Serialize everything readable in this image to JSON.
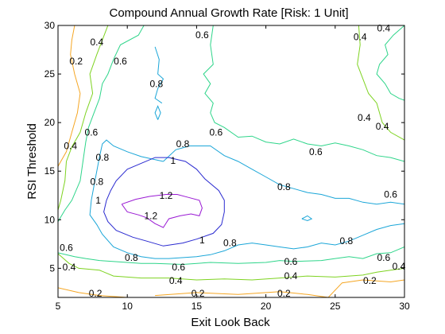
{
  "chart_data": {
    "type": "contour",
    "title": "Compound Annual Growth Rate [Risk: 1 Unit]",
    "xlabel": "Exit Look Back",
    "ylabel": "RSI Threshold",
    "xlim": [
      5,
      30
    ],
    "ylim": [
      2,
      30
    ],
    "xticks": [
      5,
      10,
      15,
      20,
      25,
      30
    ],
    "yticks": [
      5,
      10,
      15,
      20,
      25,
      30
    ],
    "grid": false,
    "levels": [
      {
        "level": "0.2",
        "color": "#f5a623"
      },
      {
        "level": "0.4",
        "color": "#7ed321"
      },
      {
        "level": "0.6",
        "color": "#2ed58a"
      },
      {
        "level": "0.8",
        "color": "#1ba6d8"
      },
      {
        "level": "1",
        "color": "#2a2ad0"
      },
      {
        "level": "1.2",
        "color": "#9a1ad4"
      }
    ],
    "contours": [
      {
        "level": "0.2",
        "points": [
          [
            6.2,
            30
          ],
          [
            6.0,
            28.5
          ],
          [
            5.9,
            27
          ],
          [
            6.2,
            25
          ],
          [
            6.6,
            23
          ],
          [
            6.4,
            21
          ],
          [
            6.0,
            19
          ],
          [
            5.6,
            17
          ],
          [
            5.2,
            16
          ],
          [
            5.0,
            15.5
          ]
        ]
      },
      {
        "level": "0.2",
        "points": [
          [
            5,
            3
          ],
          [
            6.5,
            2.5
          ],
          [
            8,
            2.2
          ],
          [
            10,
            2.0
          ]
        ]
      },
      {
        "level": "0.2",
        "points": [
          [
            12,
            2.2
          ],
          [
            15,
            2.5
          ],
          [
            18,
            2.3
          ],
          [
            21,
            2.6
          ],
          [
            23,
            2.3
          ],
          [
            24.5,
            2.0
          ]
        ]
      },
      {
        "level": "0.2",
        "points": [
          [
            24.5,
            2.0
          ],
          [
            25.5,
            3.5
          ],
          [
            27,
            3.8
          ],
          [
            29,
            3.6
          ],
          [
            30,
            3.8
          ]
        ]
      },
      {
        "level": "0.4",
        "points": [
          [
            8.6,
            30
          ],
          [
            8.2,
            28.5
          ],
          [
            7.8,
            27
          ],
          [
            7.3,
            25
          ],
          [
            7.5,
            23
          ],
          [
            7.0,
            21
          ],
          [
            6.6,
            19
          ],
          [
            6.0,
            17.5
          ],
          [
            5.6,
            16
          ],
          [
            5.5,
            14
          ],
          [
            5.2,
            12
          ],
          [
            5.0,
            11
          ]
        ]
      },
      {
        "level": "0.4",
        "points": [
          [
            5,
            6.5
          ],
          [
            5.8,
            5.5
          ],
          [
            6.5,
            5
          ],
          [
            8,
            4.8
          ],
          [
            9,
            4.2
          ],
          [
            11,
            4.0
          ],
          [
            13,
            4.0
          ],
          [
            15,
            3.8
          ],
          [
            17,
            3.9
          ],
          [
            19,
            3.8
          ],
          [
            21,
            4.0
          ],
          [
            23,
            4.2
          ],
          [
            25,
            4.1
          ],
          [
            27,
            4.3
          ],
          [
            28,
            4.6
          ],
          [
            29,
            4.8
          ],
          [
            30,
            5.0
          ]
        ]
      },
      {
        "level": "0.4",
        "points": [
          [
            26.7,
            30
          ],
          [
            26.8,
            28
          ],
          [
            26.6,
            26
          ],
          [
            27.0,
            24.5
          ],
          [
            27.4,
            23
          ],
          [
            28.0,
            22
          ],
          [
            28.4,
            20
          ],
          [
            29.0,
            19
          ],
          [
            30,
            18.2
          ]
        ]
      },
      {
        "level": "0.6",
        "points": [
          [
            11.2,
            30
          ],
          [
            10.8,
            29
          ],
          [
            9.5,
            28
          ],
          [
            9.0,
            26.5
          ],
          [
            8.6,
            25
          ],
          [
            8.2,
            24
          ],
          [
            8.0,
            22.5
          ],
          [
            7.6,
            21
          ],
          [
            7.2,
            19.5
          ],
          [
            7.0,
            18
          ],
          [
            6.8,
            16
          ],
          [
            6.6,
            14
          ],
          [
            6.0,
            12
          ],
          [
            5.5,
            11
          ],
          [
            5.0,
            9.8
          ]
        ]
      },
      {
        "level": "0.6",
        "points": [
          [
            16.2,
            30
          ],
          [
            16.0,
            28
          ],
          [
            16.2,
            26
          ],
          [
            15.5,
            25
          ],
          [
            16.0,
            24
          ],
          [
            15.6,
            23
          ],
          [
            16.2,
            22
          ],
          [
            16.0,
            21
          ],
          [
            16.3,
            20
          ],
          [
            17,
            19.5
          ],
          [
            18,
            18.5
          ],
          [
            19,
            18.6
          ],
          [
            20,
            18
          ],
          [
            21,
            17.8
          ],
          [
            22,
            18.3
          ],
          [
            23,
            17.8
          ],
          [
            24,
            17.6
          ],
          [
            25,
            17.9
          ],
          [
            26,
            17.6
          ],
          [
            27,
            17.2
          ],
          [
            28,
            16.6
          ],
          [
            29,
            16.4
          ],
          [
            30,
            16.0
          ]
        ]
      },
      {
        "level": "0.6",
        "points": [
          [
            5.0,
            6.6
          ],
          [
            6.2,
            6.2
          ],
          [
            7,
            6.0
          ],
          [
            8,
            5.8
          ],
          [
            10,
            5.6
          ],
          [
            11,
            5.5
          ],
          [
            12,
            5.5
          ],
          [
            14,
            5.4
          ],
          [
            16,
            5.6
          ],
          [
            18,
            5.5
          ],
          [
            20,
            5.6
          ],
          [
            21,
            5.8
          ],
          [
            22,
            5.7
          ],
          [
            24,
            5.8
          ],
          [
            25,
            6.0
          ],
          [
            26,
            6.2
          ],
          [
            27,
            6.0
          ],
          [
            28,
            6.5
          ],
          [
            29,
            6.6
          ],
          [
            30,
            7.2
          ]
        ]
      },
      {
        "level": "0.6",
        "points": [
          [
            30,
            30
          ],
          [
            29.2,
            29
          ],
          [
            28.6,
            28
          ],
          [
            28.8,
            27
          ],
          [
            28.2,
            26
          ],
          [
            28.0,
            25
          ],
          [
            28.6,
            24
          ],
          [
            29.0,
            23
          ],
          [
            29.6,
            22.5
          ],
          [
            30,
            22.3
          ]
        ]
      },
      {
        "level": "0.8",
        "points": [
          [
            12.6,
            16.0
          ],
          [
            11.0,
            16.5
          ],
          [
            10.0,
            17.0
          ],
          [
            9.0,
            17.6
          ],
          [
            8.5,
            18.2
          ],
          [
            8.2,
            17.8
          ],
          [
            8.0,
            16.5
          ],
          [
            7.8,
            15
          ],
          [
            7.6,
            13.5
          ],
          [
            7.4,
            12
          ],
          [
            7.3,
            10.5
          ],
          [
            7.8,
            9.5
          ],
          [
            8.2,
            8.5
          ],
          [
            9.0,
            7.2
          ],
          [
            10,
            6.6
          ],
          [
            11,
            6.2
          ],
          [
            12,
            6.0
          ],
          [
            13,
            6.0
          ],
          [
            15,
            6.2
          ],
          [
            16,
            6.4
          ],
          [
            17,
            6.8
          ],
          [
            18,
            7.4
          ],
          [
            19,
            7.6
          ],
          [
            20,
            7.4
          ],
          [
            21,
            7.2
          ],
          [
            22,
            7.0
          ],
          [
            23,
            7.2
          ],
          [
            24,
            7.6
          ],
          [
            25,
            7.4
          ],
          [
            26,
            7.8
          ],
          [
            27,
            8.4
          ],
          [
            28,
            9.0
          ],
          [
            29,
            9.4
          ],
          [
            30,
            9.6
          ]
        ]
      },
      {
        "level": "0.8",
        "points": [
          [
            12.6,
            16.0
          ],
          [
            13.5,
            17.2
          ],
          [
            14.5,
            17.6
          ],
          [
            16,
            17.6
          ],
          [
            17,
            16.6
          ],
          [
            18,
            16.0
          ],
          [
            19,
            15.2
          ],
          [
            20,
            14.4
          ],
          [
            21,
            13.6
          ],
          [
            22,
            13.2
          ],
          [
            23,
            12.8
          ],
          [
            24,
            12.6
          ],
          [
            25,
            12.2
          ],
          [
            26,
            12.2
          ],
          [
            27,
            11.8
          ],
          [
            28,
            11.6
          ],
          [
            29,
            11.8
          ],
          [
            30,
            11.6
          ]
        ]
      },
      {
        "level": "0.8",
        "points": [
          [
            12.0,
            27.8
          ],
          [
            12.3,
            26.5
          ],
          [
            12.2,
            25
          ],
          [
            12.6,
            24.5
          ],
          [
            12.2,
            23.5
          ],
          [
            12.0,
            22.5
          ],
          [
            12.5,
            22.0
          ]
        ]
      },
      {
        "level": "0.8",
        "points": [
          [
            12.2,
            20.3
          ],
          [
            12.0,
            21.0
          ],
          [
            12.2,
            21.7
          ],
          [
            12.4,
            21.0
          ],
          [
            12.2,
            20.3
          ]
        ]
      },
      {
        "level": "0.8",
        "points": [
          [
            22.6,
            10.1
          ],
          [
            23.0,
            10.4
          ],
          [
            23.3,
            10.1
          ],
          [
            23.0,
            9.9
          ],
          [
            22.6,
            10.1
          ]
        ]
      },
      {
        "level": "1",
        "points": [
          [
            13.0,
            16.4
          ],
          [
            14.2,
            16.0
          ],
          [
            15.0,
            15.2
          ],
          [
            15.6,
            14.2
          ],
          [
            16.6,
            13.0
          ],
          [
            17.0,
            12.0
          ],
          [
            17.0,
            10.8
          ],
          [
            16.8,
            9.5
          ],
          [
            16.2,
            8.6
          ],
          [
            15.0,
            8.0
          ],
          [
            14.0,
            7.6
          ],
          [
            12.6,
            7.3
          ],
          [
            11.4,
            7.8
          ],
          [
            10.4,
            8.2
          ],
          [
            9.2,
            8.9
          ],
          [
            8.6,
            9.8
          ],
          [
            8.3,
            10.8
          ],
          [
            8.5,
            12
          ],
          [
            8.8,
            13
          ],
          [
            9.2,
            14
          ],
          [
            10,
            15.2
          ],
          [
            11,
            15.8
          ],
          [
            12,
            16.4
          ],
          [
            13.0,
            16.4
          ]
        ]
      },
      {
        "level": "1.2",
        "points": [
          [
            9.6,
            11.6
          ],
          [
            10.6,
            12.1
          ],
          [
            11.6,
            12.4
          ],
          [
            12.8,
            12.6
          ],
          [
            13.6,
            12.6
          ],
          [
            14.4,
            12.3
          ],
          [
            15.2,
            12.0
          ],
          [
            15.4,
            11.2
          ],
          [
            15.2,
            10.4
          ],
          [
            14.6,
            10.6
          ],
          [
            13.8,
            10.4
          ],
          [
            13.0,
            10.1
          ],
          [
            12.6,
            9.2
          ],
          [
            12.0,
            9.6
          ],
          [
            11.4,
            10.2
          ],
          [
            10.8,
            10.5
          ],
          [
            10.0,
            10.8
          ],
          [
            9.6,
            11.6
          ]
        ]
      }
    ],
    "contour_labels": [
      {
        "text": "0.2",
        "x": 6.3,
        "y": 26.3
      },
      {
        "text": "0.4",
        "x": 7.8,
        "y": 28.3
      },
      {
        "text": "0.6",
        "x": 9.5,
        "y": 26.3
      },
      {
        "text": "0.6",
        "x": 15.4,
        "y": 29.0
      },
      {
        "text": "0.4",
        "x": 26.8,
        "y": 28.8
      },
      {
        "text": "0.4",
        "x": 28.5,
        "y": 29.7
      },
      {
        "text": "0.8",
        "x": 12.1,
        "y": 24.0
      },
      {
        "text": "0.4",
        "x": 27.1,
        "y": 20.5
      },
      {
        "text": "0.4",
        "x": 28.4,
        "y": 19.6
      },
      {
        "text": "0.6",
        "x": 7.4,
        "y": 19.0
      },
      {
        "text": "0.6",
        "x": 16.4,
        "y": 19.0
      },
      {
        "text": "0.4",
        "x": 5.9,
        "y": 17.6
      },
      {
        "text": "0.8",
        "x": 8.2,
        "y": 16.4
      },
      {
        "text": "0.8",
        "x": 14.0,
        "y": 17.8
      },
      {
        "text": "0.6",
        "x": 23.6,
        "y": 17.0
      },
      {
        "text": "0.8",
        "x": 7.8,
        "y": 13.9
      },
      {
        "text": "1",
        "x": 13.3,
        "y": 16.1
      },
      {
        "text": "0.8",
        "x": 21.3,
        "y": 13.4
      },
      {
        "text": "0.6",
        "x": 29.0,
        "y": 12.6
      },
      {
        "text": "1",
        "x": 7.9,
        "y": 12.0
      },
      {
        "text": "1.2",
        "x": 12.8,
        "y": 12.5
      },
      {
        "text": "1.2",
        "x": 11.7,
        "y": 10.4
      },
      {
        "text": "1",
        "x": 15.4,
        "y": 7.9
      },
      {
        "text": "0.8",
        "x": 17.4,
        "y": 7.6
      },
      {
        "text": "0.8",
        "x": 25.8,
        "y": 7.8
      },
      {
        "text": "0.6",
        "x": 5.6,
        "y": 7.1
      },
      {
        "text": "0.8",
        "x": 10.3,
        "y": 6.1
      },
      {
        "text": "0.6",
        "x": 13.7,
        "y": 5.1
      },
      {
        "text": "0.6",
        "x": 28.5,
        "y": 6.1
      },
      {
        "text": "0.6",
        "x": 21.8,
        "y": 5.7
      },
      {
        "text": "0.4",
        "x": 5.8,
        "y": 5.1
      },
      {
        "text": "0.4",
        "x": 29.6,
        "y": 5.2
      },
      {
        "text": "0.4",
        "x": 21.8,
        "y": 4.2
      },
      {
        "text": "0.4",
        "x": 13.5,
        "y": 3.7
      },
      {
        "text": "0.2",
        "x": 27.5,
        "y": 3.7
      },
      {
        "text": "0.2",
        "x": 7.7,
        "y": 2.4
      },
      {
        "text": "0.2",
        "x": 15.1,
        "y": 2.4
      },
      {
        "text": "0.2",
        "x": 21.3,
        "y": 2.4
      }
    ]
  }
}
